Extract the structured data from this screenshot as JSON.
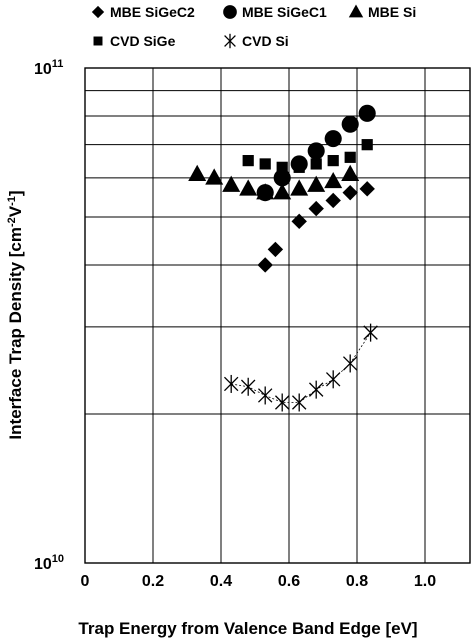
{
  "chart_data": {
    "type": "scatter",
    "xlabel": "Trap Energy from Valence Band Edge [eV]",
    "ylabel": "Interface Trap Density [cm-2V-1]",
    "ylabel_parts": {
      "base": "Interface Trap Density [cm",
      "exp1": "-2",
      "mid": "V",
      "exp2": "-1",
      "end": "]"
    },
    "xlim": [
      0,
      1.1
    ],
    "ylim": [
      10000000000,
      100000000000
    ],
    "y_scale": "log",
    "grid": true,
    "x_ticks": [
      {
        "value": 0,
        "label": "0"
      },
      {
        "value": 0.2,
        "label": "0.2"
      },
      {
        "value": 0.4,
        "label": "0.4"
      },
      {
        "value": 0.6,
        "label": "0.6"
      },
      {
        "value": 0.8,
        "label": "0.8"
      },
      {
        "value": 1.0,
        "label": "1.0"
      }
    ],
    "y_ticks": [
      {
        "value": 100000000000,
        "base": "10",
        "exp": "11"
      },
      {
        "value": 10000000000,
        "base": "10",
        "exp": "10"
      }
    ],
    "legend_position": "top",
    "series": [
      {
        "name": "MBE SiGeC2",
        "marker": "diamond",
        "x": [
          0.53,
          0.56,
          0.63,
          0.68,
          0.73,
          0.78,
          0.83
        ],
        "y": [
          40000000000,
          43000000000,
          49000000000,
          52000000000,
          54000000000,
          56000000000,
          57000000000
        ]
      },
      {
        "name": "MBE SiGeC1",
        "marker": "circle",
        "x": [
          0.53,
          0.58,
          0.63,
          0.68,
          0.73,
          0.78,
          0.83
        ],
        "y": [
          56000000000,
          60000000000,
          64000000000,
          68000000000,
          72000000000,
          77000000000,
          81000000000
        ]
      },
      {
        "name": "MBE Si",
        "marker": "triangle",
        "x": [
          0.33,
          0.38,
          0.43,
          0.48,
          0.53,
          0.58,
          0.63,
          0.68,
          0.73,
          0.78
        ],
        "y": [
          61000000000,
          60000000000,
          58000000000,
          57000000000,
          56000000000,
          56000000000,
          57000000000,
          58000000000,
          59000000000,
          61000000000
        ]
      },
      {
        "name": "CVD SiGe",
        "marker": "square",
        "x": [
          0.48,
          0.53,
          0.58,
          0.63,
          0.68,
          0.73,
          0.78,
          0.83
        ],
        "y": [
          65000000000,
          64000000000,
          63000000000,
          63000000000,
          64000000000,
          65000000000,
          66000000000,
          70000000000
        ]
      },
      {
        "name": "CVD Si",
        "marker": "asterisk",
        "x": [
          0.43,
          0.48,
          0.53,
          0.58,
          0.63,
          0.68,
          0.73,
          0.78,
          0.84
        ],
        "y": [
          23000000000,
          22700000000,
          21800000000,
          21100000000,
          21100000000,
          22400000000,
          23500000000,
          25300000000,
          29200000000
        ]
      }
    ]
  }
}
